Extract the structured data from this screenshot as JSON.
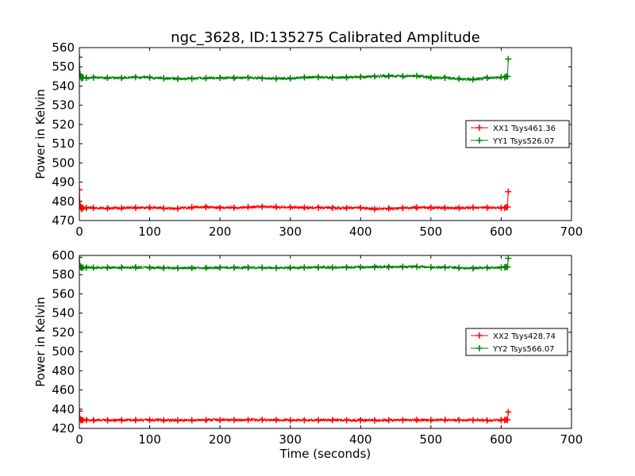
{
  "title": "ngc_3628, ID:135275 Calibrated Amplitude",
  "xlabel": "Time (seconds)",
  "colors": {
    "red": "#ff0000",
    "green": "#008000"
  },
  "chart_data": [
    {
      "type": "line",
      "ylabel": "Power in Kelvin",
      "xlim": [
        0,
        700
      ],
      "ylim": [
        470,
        560
      ],
      "xticks": [
        0,
        100,
        200,
        300,
        400,
        500,
        600,
        700
      ],
      "yticks": [
        470,
        480,
        490,
        500,
        510,
        520,
        530,
        540,
        550,
        560
      ],
      "legend_position": "center-right",
      "grid": false,
      "series": [
        {
          "name": "XX1 Tsys461.36",
          "color": "#ff0000",
          "marker": "+",
          "x": [
            0,
            1,
            2,
            3,
            5,
            10,
            20,
            40,
            60,
            80,
            100,
            120,
            140,
            160,
            180,
            200,
            220,
            240,
            260,
            280,
            300,
            320,
            340,
            360,
            380,
            400,
            420,
            440,
            460,
            480,
            500,
            520,
            540,
            560,
            580,
            600,
            605,
            607,
            609,
            610
          ],
          "y": [
            486,
            478,
            477,
            476,
            476.5,
            476.5,
            476.6,
            476.4,
            476.5,
            476.7,
            476.8,
            476.4,
            476.3,
            476.9,
            477.0,
            476.6,
            476.7,
            477.0,
            477.2,
            477.0,
            476.9,
            476.8,
            476.7,
            476.6,
            476.5,
            476.6,
            476.0,
            476.3,
            476.5,
            476.8,
            476.7,
            476.6,
            476.5,
            476.8,
            476.7,
            476.6,
            476.5,
            477,
            477,
            485
          ]
        },
        {
          "name": "YY1 Tsys526.07",
          "color": "#008000",
          "marker": "+",
          "x": [
            0,
            1,
            2,
            3,
            5,
            10,
            20,
            40,
            60,
            80,
            100,
            120,
            140,
            160,
            180,
            200,
            220,
            240,
            260,
            280,
            300,
            320,
            340,
            360,
            380,
            400,
            420,
            440,
            460,
            480,
            500,
            520,
            540,
            560,
            580,
            600,
            605,
            607,
            609,
            610
          ],
          "y": [
            555,
            546,
            545,
            544,
            544.3,
            544.3,
            544.4,
            544.3,
            544.2,
            544.6,
            544.4,
            544.0,
            543.8,
            543.9,
            544.1,
            544.3,
            544.2,
            544.4,
            544.1,
            543.8,
            544.0,
            544.5,
            544.6,
            544.4,
            544.5,
            544.8,
            545.0,
            545.2,
            545.1,
            545.3,
            544.4,
            544.3,
            543.8,
            543.4,
            544.3,
            544.6,
            544.5,
            545,
            545,
            554
          ]
        }
      ]
    },
    {
      "type": "line",
      "ylabel": "Power in Kelvin",
      "xlim": [
        0,
        700
      ],
      "ylim": [
        420,
        600
      ],
      "xticks": [
        0,
        100,
        200,
        300,
        400,
        500,
        600,
        700
      ],
      "yticks": [
        420,
        440,
        460,
        480,
        500,
        520,
        540,
        560,
        580,
        600
      ],
      "legend_position": "center-right",
      "grid": false,
      "series": [
        {
          "name": "XX2 Tsys428.74",
          "color": "#ff0000",
          "marker": "+",
          "x": [
            0,
            1,
            2,
            3,
            5,
            10,
            20,
            40,
            60,
            80,
            100,
            120,
            140,
            160,
            180,
            200,
            220,
            240,
            260,
            280,
            300,
            320,
            340,
            360,
            380,
            400,
            420,
            440,
            460,
            480,
            500,
            520,
            540,
            560,
            580,
            600,
            605,
            607,
            609,
            610
          ],
          "y": [
            438,
            430,
            429,
            428.6,
            428.7,
            428.7,
            428.6,
            428.5,
            428.6,
            428.7,
            428.8,
            428.6,
            428.5,
            428.6,
            428.7,
            428.7,
            428.8,
            428.7,
            428.9,
            428.8,
            428.6,
            428.5,
            428.6,
            428.7,
            428.6,
            428.5,
            428.4,
            428.6,
            428.7,
            428.8,
            428.7,
            428.8,
            428.7,
            428.6,
            428.5,
            428.6,
            428.7,
            429,
            429,
            437
          ]
        },
        {
          "name": "YY2 Tsys566.07",
          "color": "#008000",
          "marker": "+",
          "x": [
            0,
            1,
            2,
            3,
            5,
            10,
            20,
            40,
            60,
            80,
            100,
            120,
            140,
            160,
            180,
            200,
            220,
            240,
            260,
            280,
            300,
            320,
            340,
            360,
            380,
            400,
            420,
            440,
            460,
            480,
            500,
            520,
            540,
            560,
            580,
            600,
            605,
            607,
            609,
            610
          ],
          "y": [
            598,
            589,
            588,
            587.2,
            587.3,
            587.4,
            587.3,
            587.4,
            587.5,
            587.6,
            587.3,
            587.0,
            586.8,
            586.9,
            587.1,
            587.3,
            587.4,
            587.5,
            587.3,
            587.0,
            587.2,
            587.5,
            587.6,
            587.5,
            587.6,
            587.8,
            587.9,
            588.0,
            588.1,
            588.2,
            587.8,
            587.6,
            587.2,
            586.6,
            587.2,
            587.5,
            587.6,
            588,
            588,
            597
          ]
        }
      ]
    }
  ]
}
